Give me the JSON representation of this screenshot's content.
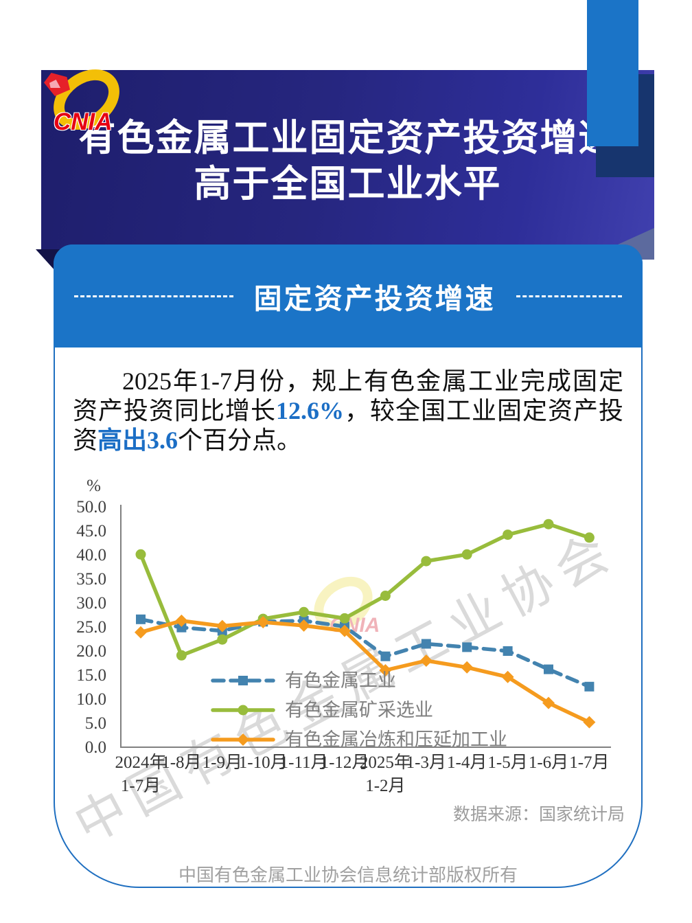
{
  "logo": {
    "wordmark": "CNIA"
  },
  "header": {
    "title_line1": "有色金属工业固定资产投资增速",
    "title_line2": "高于全国工业水平"
  },
  "panel": {
    "heading": "固定资产投资增速"
  },
  "paragraph": {
    "segments": [
      {
        "text": "2025年1-7月份，规上有色金属工业完成固定资产投资同比增长",
        "style": "normal"
      },
      {
        "text": "12.6%",
        "style": "accent"
      },
      {
        "text": "，较全国工业固定资产投资",
        "style": "normal"
      },
      {
        "text": "高出3.6",
        "style": "accent"
      },
      {
        "text": "个百分点。",
        "style": "normal"
      }
    ]
  },
  "chart_data": {
    "type": "line",
    "title": "",
    "unit_label": "%",
    "categories": [
      [
        "2024年",
        "1-7月"
      ],
      [
        "1-8月"
      ],
      [
        "1-9月"
      ],
      [
        "1-10月"
      ],
      [
        "1-11月"
      ],
      [
        "1-12月"
      ],
      [
        "2025年",
        "1-2月"
      ],
      [
        "1-3月"
      ],
      [
        "1-4月"
      ],
      [
        "1-5月"
      ],
      [
        "1-6月"
      ],
      [
        "1-7月"
      ]
    ],
    "series": [
      {
        "name": "有色金属工业",
        "color": "#4383AF",
        "line": "dashed",
        "marker": "square",
        "values": [
          26.6,
          24.9,
          24.2,
          26.1,
          26.3,
          25.1,
          18.9,
          21.5,
          20.8,
          20.0,
          16.2,
          12.6
        ]
      },
      {
        "name": "有色金属矿采选业",
        "color": "#98BC3C",
        "line": "solid",
        "marker": "circle",
        "values": [
          40.1,
          19.1,
          22.4,
          26.7,
          28.1,
          26.8,
          31.5,
          38.7,
          40.1,
          44.2,
          46.4,
          43.6
        ]
      },
      {
        "name": "有色金属冶炼和压延加工业",
        "color": "#F59B1E",
        "line": "solid",
        "marker": "diamond",
        "values": [
          23.9,
          26.3,
          25.2,
          26.0,
          25.3,
          24.2,
          16.0,
          18.0,
          16.6,
          14.6,
          9.2,
          5.2
        ]
      }
    ],
    "ylim": [
      0,
      50
    ],
    "ytick_step": 5,
    "grid": false,
    "legend_position": "inside-bottom-left"
  },
  "source_note": "数据来源：国家统计局",
  "footer": {
    "copyright": "中国有色金属工业协会信息统计部版权所有"
  },
  "watermark": {
    "text": "中国有色金属工业协会",
    "logo_text": "CNIA"
  },
  "colors": {
    "banner_navy": "#26267F",
    "panel_blue": "#1B74C7",
    "accent_text": "#1B6EC5",
    "card_border": "#1F6FC0",
    "series_industry": "#4383AF",
    "series_mining": "#98BC3C",
    "series_smelting": "#F59B1E"
  }
}
